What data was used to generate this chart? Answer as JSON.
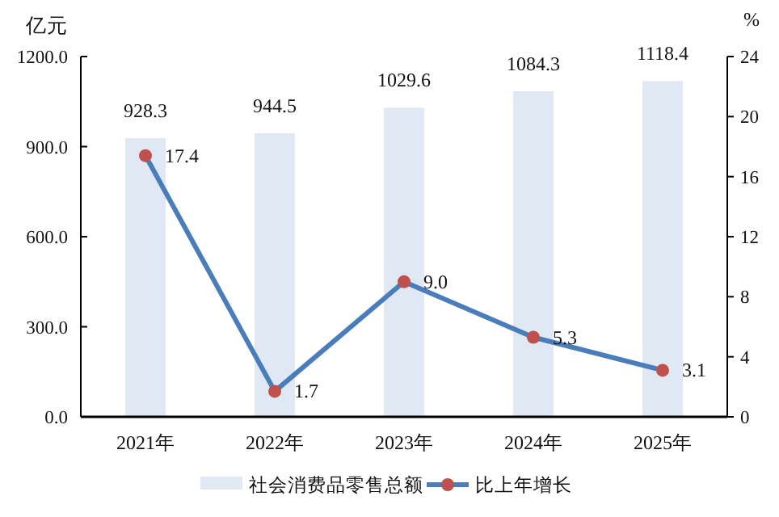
{
  "chart_data": {
    "type": "bar",
    "ylabel": "亿元",
    "y2label": "%",
    "categories": [
      "2021年",
      "2022年",
      "2023年",
      "2024年",
      "2025年"
    ],
    "series": [
      {
        "name": "社会消费品零售总额",
        "color": "#dfe8f3",
        "values": [
          928.3,
          944.5,
          1029.6,
          1084.3,
          1118.4
        ],
        "value_labels": [
          "928.3",
          "944.5",
          "1029.6",
          "1084.3",
          "1118.4"
        ]
      },
      {
        "name": "比上年增长",
        "type": "line",
        "axis": "y2",
        "color": "#4a7ebb",
        "colors": [
          "#c0504d",
          "#c0504d",
          "#c0504d",
          "#c0504d",
          "#c0504d"
        ],
        "marker": "circle",
        "values": [
          17.4,
          1.7,
          9.0,
          5.3,
          3.1
        ],
        "value_labels": [
          "17.4",
          "1.7",
          "9.0",
          "5.3",
          "3.1"
        ]
      }
    ],
    "ylim": [
      0,
      1200
    ],
    "yticks": [
      {
        "value": 0,
        "label": "0.0"
      },
      {
        "value": 300,
        "label": "300.0"
      },
      {
        "value": 600,
        "label": "600.0"
      },
      {
        "value": 900,
        "label": "900.0"
      },
      {
        "value": 1200,
        "label": "1200.0"
      }
    ],
    "y2lim": [
      0,
      24
    ],
    "y2ticks": [
      0,
      4,
      8,
      12,
      16,
      20,
      24
    ],
    "grid": false,
    "legend": "bottom"
  }
}
